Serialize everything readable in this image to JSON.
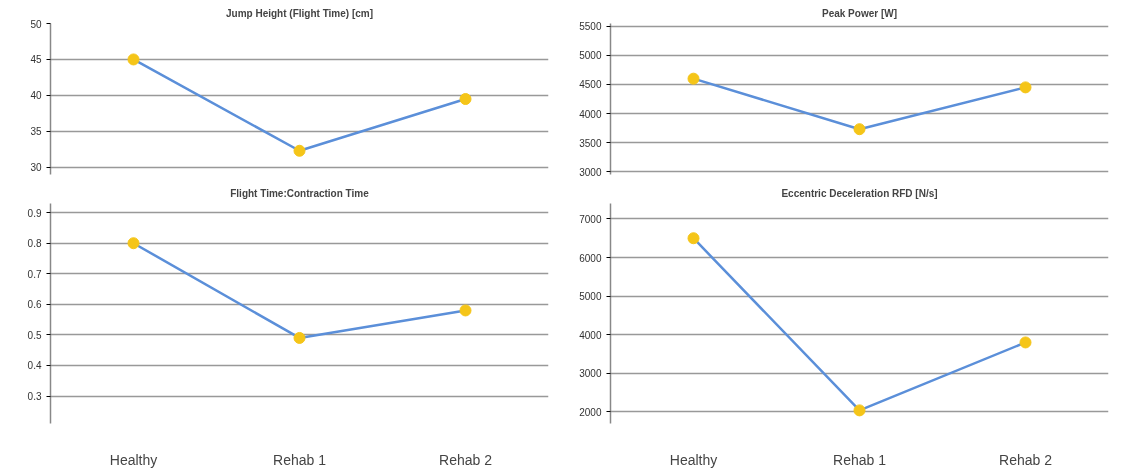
{
  "chart_data": [
    {
      "type": "line",
      "title": "Jump Height (Flight Time) [cm]",
      "categories": [
        null,
        null,
        null
      ],
      "series": [
        {
          "color": "#5b8fd9",
          "values": [
            45,
            32.3,
            39.5
          ]
        }
      ],
      "ylim": [
        29,
        50
      ],
      "yticks": [
        30,
        35,
        40,
        45,
        50
      ],
      "grid": "y",
      "marker": "circle"
    },
    {
      "type": "line",
      "title": "Peak Power [W]",
      "categories": [
        null,
        null,
        null
      ],
      "series": [
        {
          "color": "#5b8fd9",
          "values": [
            4600,
            3730,
            4450
          ]
        }
      ],
      "ylim": [
        2950,
        5550
      ],
      "yticks": [
        3000,
        3500,
        4000,
        4500,
        5000,
        5500
      ],
      "grid": "y",
      "marker": "circle"
    },
    {
      "type": "line",
      "title": "Flight Time:Contraction Time",
      "categories": [
        "Healthy",
        "Rehab 1",
        "Rehab 2"
      ],
      "series": [
        {
          "color": "#5b8fd9",
          "values": [
            0.8,
            0.49,
            0.58
          ]
        }
      ],
      "ylim": [
        0.21,
        0.93
      ],
      "yticks": [
        0.3,
        0.4,
        0.5,
        0.6,
        0.7,
        0.8,
        0.9
      ],
      "grid": "y",
      "marker": "circle"
    },
    {
      "type": "line",
      "title": "Eccentric Deceleration RFD [N/s]",
      "categories": [
        "Healthy",
        "Rehab 1",
        "Rehab 2"
      ],
      "series": [
        {
          "color": "#5b8fd9",
          "values": [
            6500,
            2040,
            3800
          ]
        }
      ],
      "ylim": [
        1700,
        7400
      ],
      "yticks": [
        2000,
        3000,
        4000,
        5000,
        6000,
        7000
      ],
      "grid": "y",
      "marker": "circle"
    }
  ]
}
